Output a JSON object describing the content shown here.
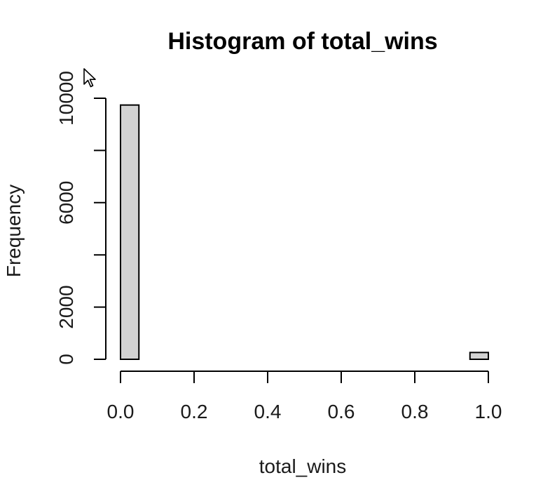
{
  "chart_data": {
    "type": "bar",
    "title": "Histogram of total_wins",
    "xlabel": "total_wins",
    "ylabel": "Frequency",
    "bins": [
      {
        "x0": 0.0,
        "x1": 0.05,
        "count": 9740
      },
      {
        "x0": 0.05,
        "x1": 0.1,
        "count": 0
      },
      {
        "x0": 0.1,
        "x1": 0.15,
        "count": 0
      },
      {
        "x0": 0.15,
        "x1": 0.2,
        "count": 0
      },
      {
        "x0": 0.2,
        "x1": 0.25,
        "count": 0
      },
      {
        "x0": 0.25,
        "x1": 0.3,
        "count": 0
      },
      {
        "x0": 0.3,
        "x1": 0.35,
        "count": 0
      },
      {
        "x0": 0.35,
        "x1": 0.4,
        "count": 0
      },
      {
        "x0": 0.4,
        "x1": 0.45,
        "count": 0
      },
      {
        "x0": 0.45,
        "x1": 0.5,
        "count": 0
      },
      {
        "x0": 0.5,
        "x1": 0.55,
        "count": 0
      },
      {
        "x0": 0.55,
        "x1": 0.6,
        "count": 0
      },
      {
        "x0": 0.6,
        "x1": 0.65,
        "count": 0
      },
      {
        "x0": 0.65,
        "x1": 0.7,
        "count": 0
      },
      {
        "x0": 0.7,
        "x1": 0.75,
        "count": 0
      },
      {
        "x0": 0.75,
        "x1": 0.8,
        "count": 0
      },
      {
        "x0": 0.8,
        "x1": 0.85,
        "count": 0
      },
      {
        "x0": 0.85,
        "x1": 0.9,
        "count": 0
      },
      {
        "x0": 0.9,
        "x1": 0.95,
        "count": 0
      },
      {
        "x0": 0.95,
        "x1": 1.0,
        "count": 260
      }
    ],
    "xlim": [
      0,
      1
    ],
    "ylim": [
      0,
      10000
    ],
    "xticks": [
      0.0,
      0.2,
      0.4,
      0.6,
      0.8,
      1.0
    ],
    "xtick_labels": [
      "0.0",
      "0.2",
      "0.4",
      "0.6",
      "0.8",
      "1.0"
    ],
    "yticks": [
      0,
      2000,
      4000,
      6000,
      8000,
      10000
    ],
    "ytick_labels": [
      "0",
      "2000",
      "",
      "6000",
      "",
      "10000"
    ],
    "grid": false,
    "bar_fill": "#d3d3d3",
    "bar_stroke": "#000000"
  }
}
